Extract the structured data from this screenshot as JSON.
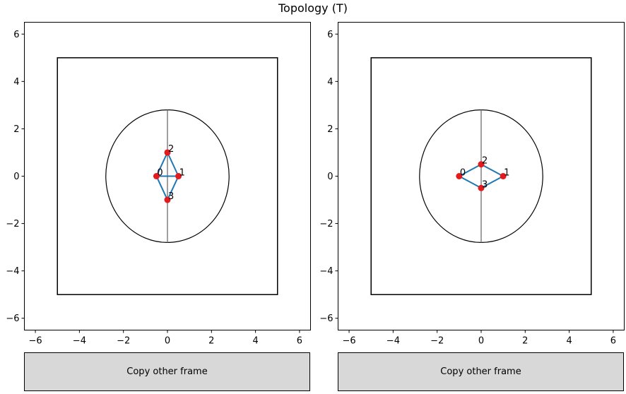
{
  "title": "Topology (T)",
  "chart_data": [
    {
      "type": "scatter",
      "title": "",
      "xlabel": "",
      "ylabel": "",
      "xlim": [
        -6.5,
        6.5
      ],
      "ylim": [
        -6.5,
        6.5
      ],
      "xticks": [
        -6,
        -4,
        -2,
        0,
        2,
        4,
        6
      ],
      "yticks": [
        -6,
        -4,
        -2,
        0,
        2,
        4,
        6
      ],
      "grid": false,
      "bounding_square": {
        "xmin": -5,
        "xmax": 5,
        "ymin": -5,
        "ymax": 5,
        "color": "#000000"
      },
      "ellipse": {
        "cx": 0,
        "cy": 0,
        "rx": 2.8,
        "ry": 2.8,
        "color": "#000000"
      },
      "vertical_line": {
        "x": 0,
        "y": [
          -2.8,
          2.8
        ],
        "color": "#808080"
      },
      "points": [
        {
          "label": "0",
          "x": -0.5,
          "y": 0
        },
        {
          "label": "1",
          "x": 0.5,
          "y": 0
        },
        {
          "label": "2",
          "x": 0,
          "y": 1
        },
        {
          "label": "3",
          "x": 0,
          "y": -1
        }
      ],
      "edges": [
        [
          0,
          1
        ],
        [
          0,
          2
        ],
        [
          2,
          1
        ],
        [
          1,
          3
        ],
        [
          3,
          0
        ]
      ],
      "edge_color": "#1f77b4",
      "point_color": "#e41a1c",
      "button_label": "Copy other frame"
    },
    {
      "type": "scatter",
      "title": "",
      "xlabel": "",
      "ylabel": "",
      "xlim": [
        -6.5,
        6.5
      ],
      "ylim": [
        -6.5,
        6.5
      ],
      "xticks": [
        -6,
        -4,
        -2,
        0,
        2,
        4,
        6
      ],
      "yticks": [
        -6,
        -4,
        -2,
        0,
        2,
        4,
        6
      ],
      "grid": false,
      "bounding_square": {
        "xmin": -5,
        "xmax": 5,
        "ymin": -5,
        "ymax": 5,
        "color": "#000000"
      },
      "ellipse": {
        "cx": 0,
        "cy": 0,
        "rx": 2.8,
        "ry": 2.8,
        "color": "#000000"
      },
      "vertical_line": {
        "x": 0,
        "y": [
          -2.8,
          2.8
        ],
        "color": "#808080"
      },
      "points": [
        {
          "label": "0",
          "x": -1,
          "y": 0
        },
        {
          "label": "1",
          "x": 1,
          "y": 0
        },
        {
          "label": "2",
          "x": 0,
          "y": 0.5
        },
        {
          "label": "3",
          "x": 0,
          "y": -0.5
        }
      ],
      "edges": [
        [
          0,
          2
        ],
        [
          2,
          1
        ],
        [
          1,
          3
        ],
        [
          3,
          0
        ]
      ],
      "edge_color": "#1f77b4",
      "point_color": "#e41a1c",
      "button_label": "Copy other frame"
    }
  ]
}
